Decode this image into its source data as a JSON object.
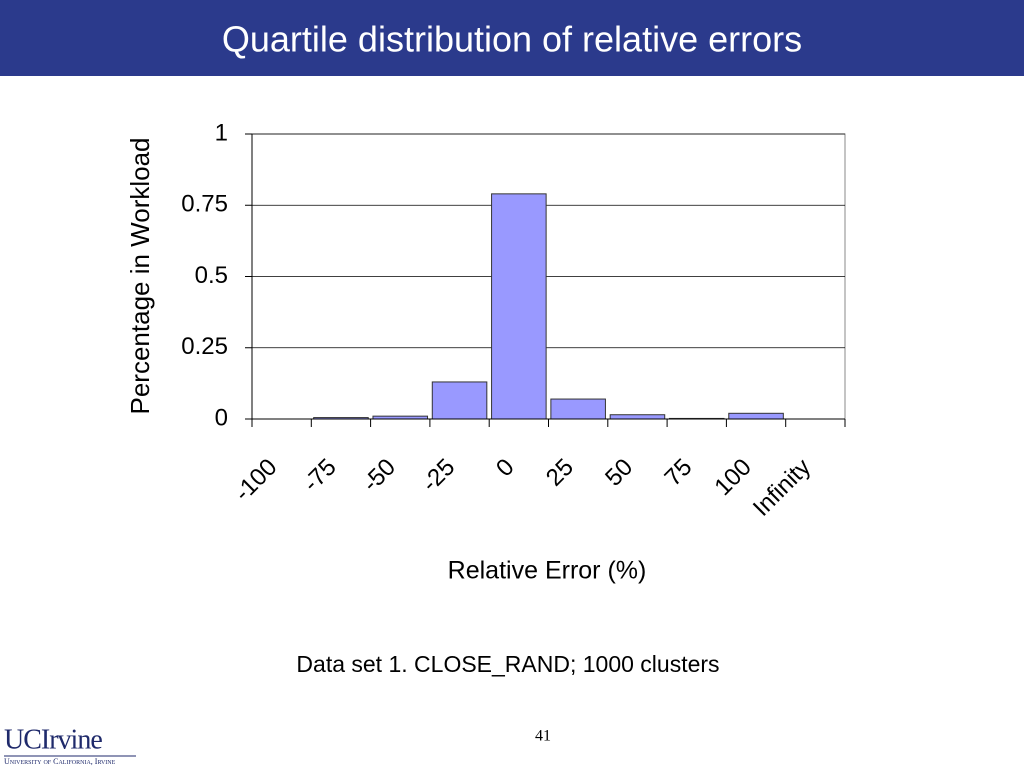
{
  "chart_data": {
    "type": "bar",
    "title": "Quartile distribution of relative errors",
    "x_label": "Relative Error (%)",
    "y_label": "Percentage in Workload",
    "categories": [
      "-100",
      "-75",
      "-50",
      "-25",
      "0",
      "25",
      "50",
      "75",
      "100",
      "Infinity"
    ],
    "values": [
      0,
      0.005,
      0.01,
      0.13,
      0.79,
      0.07,
      0.015,
      0.002,
      0.02,
      0
    ],
    "color": "#9999ff",
    "ylim": [
      0,
      1
    ],
    "yticks": [
      0,
      0.25,
      0.5,
      0.75,
      1
    ],
    "grid": true
  },
  "footer": {
    "caption": "Data set 1. CLOSE_RAND; 1000 clusters",
    "page_number": "41",
    "logo": "UCIrvine",
    "logo_subtitle": "University of California, Irvine"
  }
}
